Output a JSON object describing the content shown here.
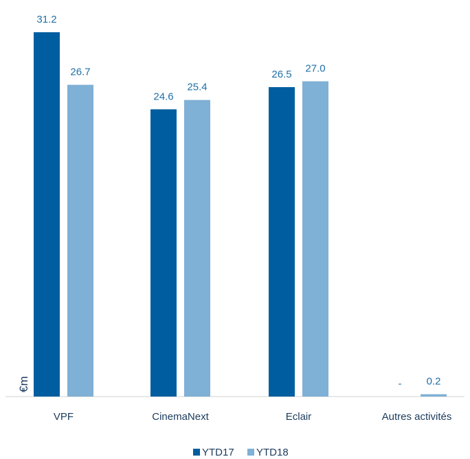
{
  "chart_data": {
    "type": "bar",
    "title": "",
    "xlabel": "",
    "ylabel": "€m",
    "categories": [
      "VPF",
      "CinemaNext",
      "Eclair",
      "Autres activités"
    ],
    "series": [
      {
        "name": "YTD17",
        "color": "#005ea0",
        "values": [
          31.2,
          24.6,
          26.5,
          0
        ],
        "labels": [
          "31.2",
          "24.6",
          "26.5",
          "-"
        ]
      },
      {
        "name": "YTD18",
        "color": "#7fb0d5",
        "values": [
          26.7,
          25.4,
          27.0,
          0.2
        ],
        "labels": [
          "26.7",
          "25.4",
          "27.0",
          "0.2"
        ]
      }
    ],
    "ylim": [
      0,
      31.2
    ],
    "grid": false,
    "legend": "bottom-center"
  }
}
